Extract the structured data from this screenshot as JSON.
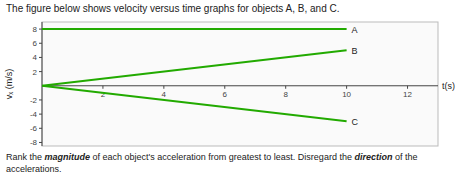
{
  "chart_data": {
    "type": "line",
    "title": "The figure below shows velocity versus time graphs for objects A, B, and C.",
    "xlabel": "t(s)",
    "ylabel": "vₓ (m/s)",
    "footer": [
      "Rank the ",
      "magnitude",
      " of each object's acceleration from greatest to least. Disregard the ",
      "direction",
      " of the accelerations."
    ],
    "color": "#22aa00",
    "series": [
      {
        "name": "A",
        "x": [
          0,
          10
        ],
        "values": [
          8,
          8
        ]
      },
      {
        "name": "B",
        "x": [
          0,
          10
        ],
        "values": [
          0,
          5
        ]
      },
      {
        "name": "C",
        "x": [
          0,
          10
        ],
        "values": [
          0,
          -5
        ]
      }
    ],
    "xlim": [
      0,
      13
    ],
    "ylim": [
      -8.5,
      9.0
    ],
    "xticks": [
      2,
      4,
      6,
      8,
      10,
      12
    ],
    "yticks": [
      -8,
      -6,
      -4,
      -2,
      2,
      4,
      6,
      8
    ],
    "grid": false
  }
}
